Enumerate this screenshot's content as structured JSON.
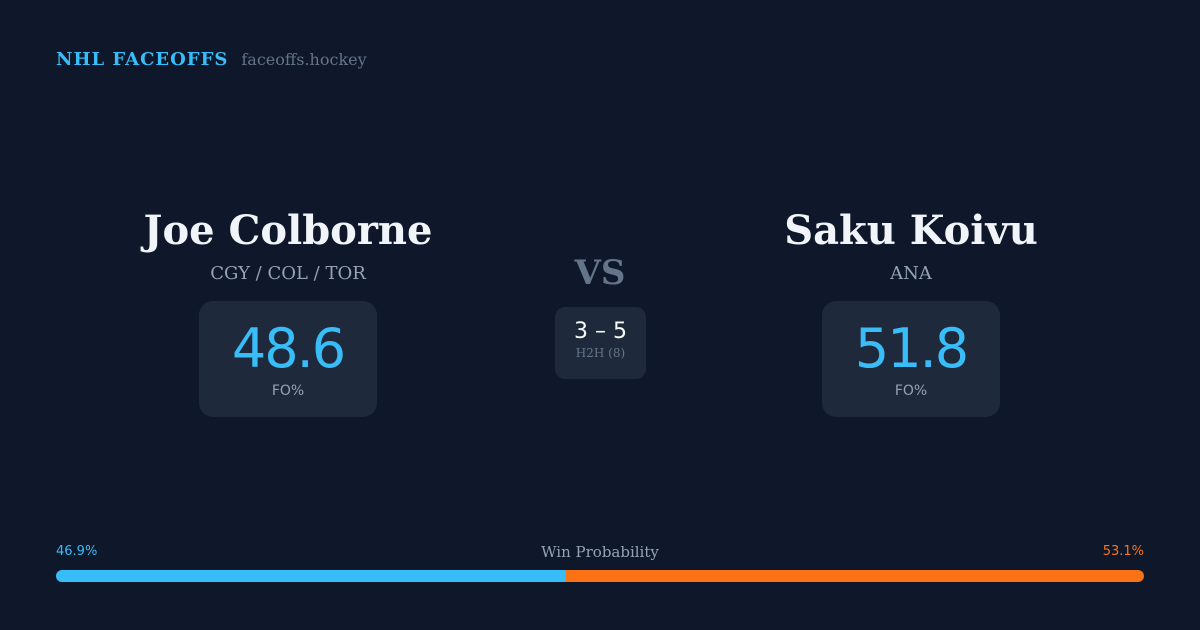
{
  "brand": {
    "name": "NHL FACEOFFS",
    "site": "faceoffs.hockey"
  },
  "player_left": {
    "name": "Joe Colborne",
    "teams": "CGY / COL / TOR",
    "fo_pct": "48.6",
    "fo_label": "FO%"
  },
  "player_right": {
    "name": "Saku Koivu",
    "teams": "ANA",
    "fo_pct": "51.8",
    "fo_label": "FO%"
  },
  "versus": {
    "label": "VS",
    "h2h_score": "3 – 5",
    "h2h_label": "H2H (8)"
  },
  "win_probability": {
    "title": "Win Probability",
    "left_label": "46.9%",
    "right_label": "53.1%",
    "left_value": 46.9,
    "right_value": 53.1,
    "colors": {
      "left": "#38bdf8",
      "right": "#f97316"
    }
  }
}
